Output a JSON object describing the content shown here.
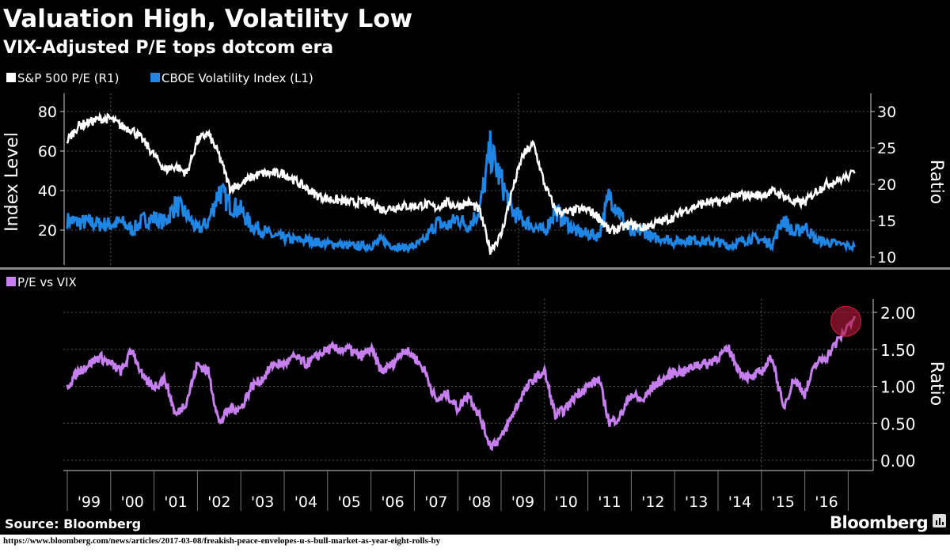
{
  "title": "Valuation High, Volatility Low",
  "subtitle": "VIX-Adjusted P/E tops dotcom era",
  "source": "Source: Bloomberg",
  "brand": "Bloomberg",
  "url": "https://www.bloomberg.com/news/articles/2017-03-08/freakish-peace-envelopes-u-s-bull-market-as-year-eight-rolls-by",
  "colors": {
    "pe": "#ffffff",
    "vix": "#1f86e6",
    "ratio": "#c77ff0",
    "highlight": "#b0183a"
  },
  "chart_data": [
    {
      "type": "line",
      "panel": "top",
      "legend": [
        "S&P 500 P/E (R1)",
        "CBOE Volatility Index  (L1)"
      ],
      "ylabel_left": "Index Level",
      "ylabel_right": "Ratio",
      "ylim_left": [
        5,
        85
      ],
      "yticks_left": [
        "80",
        "60",
        "40",
        "20"
      ],
      "ylim_right": [
        9.5,
        31.5
      ],
      "yticks_right": [
        "30",
        "25",
        "20",
        "15",
        "10"
      ],
      "grid": true,
      "x": [
        1999,
        1999.25,
        1999.5,
        1999.75,
        2000,
        2000.25,
        2000.5,
        2000.75,
        2001,
        2001.25,
        2001.5,
        2001.75,
        2002,
        2002.25,
        2002.5,
        2002.75,
        2003,
        2003.25,
        2003.5,
        2003.75,
        2004,
        2004.25,
        2004.5,
        2004.75,
        2005,
        2005.25,
        2005.5,
        2005.75,
        2006,
        2006.25,
        2006.5,
        2006.75,
        2007,
        2007.25,
        2007.5,
        2007.75,
        2008,
        2008.25,
        2008.5,
        2008.75,
        2009,
        2009.25,
        2009.5,
        2009.75,
        2010,
        2010.25,
        2010.5,
        2010.75,
        2011,
        2011.25,
        2011.5,
        2011.75,
        2012,
        2012.25,
        2012.5,
        2012.75,
        2013,
        2013.25,
        2013.5,
        2013.75,
        2014,
        2014.25,
        2014.5,
        2014.75,
        2015,
        2015.25,
        2015.5,
        2015.75,
        2016,
        2016.25,
        2016.5,
        2016.75,
        2017.15
      ],
      "series": [
        {
          "name": "S&P 500 P/E (R1)",
          "axis": "right",
          "values": [
            26,
            28,
            28.5,
            29,
            29,
            28,
            27.5,
            26,
            24,
            22,
            22.5,
            21.5,
            26,
            27,
            24,
            19.5,
            20,
            21,
            21.5,
            21.5,
            21.5,
            20.5,
            19.5,
            18.5,
            18,
            17.8,
            17.5,
            17.5,
            17.5,
            16.5,
            16.8,
            17,
            17,
            17.2,
            16.8,
            17.5,
            17,
            17.5,
            16.5,
            11,
            13,
            19,
            24,
            25.5,
            20,
            16.5,
            16,
            16.5,
            16.5,
            15.5,
            13.5,
            14,
            14.5,
            14,
            14.5,
            15,
            15.5,
            16.5,
            17,
            17.5,
            17.5,
            18,
            18.5,
            18.5,
            18.5,
            19,
            18.5,
            17.5,
            17.5,
            19,
            20,
            20.5,
            21.5
          ]
        },
        {
          "name": "CBOE Volatility Index  (L1)",
          "axis": "left",
          "values": [
            25,
            24,
            24,
            23,
            23,
            24,
            20,
            25,
            26,
            24,
            33,
            28,
            20,
            24,
            40,
            33,
            30,
            22,
            20,
            17,
            16,
            15,
            15,
            14,
            13,
            13,
            12,
            12,
            12,
            15,
            12,
            11,
            12,
            15,
            24,
            22,
            26,
            22,
            30,
            60,
            45,
            30,
            25,
            22,
            19,
            30,
            24,
            19,
            18,
            17,
            38,
            28,
            18,
            20,
            16,
            16,
            14,
            15,
            15,
            14,
            14,
            12,
            14,
            16,
            15,
            13,
            26,
            18,
            22,
            15,
            14,
            13,
            11.5
          ]
        }
      ]
    },
    {
      "type": "line",
      "panel": "bottom",
      "legend": [
        "P/E vs VIX"
      ],
      "ylabel_right": "Ratio",
      "ylim": [
        -0.1,
        2.15
      ],
      "yticks": [
        "2.00",
        "1.50",
        "1.00",
        "0.50",
        "0.00"
      ],
      "grid": true,
      "xticks": [
        "'99",
        "'00",
        "'01",
        "'02",
        "'03",
        "'04",
        "'05",
        "'06",
        "'07",
        "'08",
        "'09",
        "'10",
        "'11",
        "'12",
        "'13",
        "'14",
        "'15",
        "'16"
      ],
      "series": [
        {
          "name": "P/E vs VIX",
          "values": [
            1.0,
            1.2,
            1.3,
            1.4,
            1.3,
            1.2,
            1.5,
            1.1,
            1.0,
            1.1,
            0.6,
            0.8,
            1.3,
            1.2,
            0.5,
            0.7,
            0.7,
            1.0,
            1.1,
            1.3,
            1.3,
            1.4,
            1.3,
            1.4,
            1.5,
            1.5,
            1.5,
            1.4,
            1.5,
            1.2,
            1.3,
            1.5,
            1.4,
            1.2,
            0.8,
            0.9,
            0.7,
            0.9,
            0.6,
            0.2,
            0.3,
            0.6,
            0.9,
            1.1,
            1.2,
            0.6,
            0.7,
            0.9,
            1.0,
            1.1,
            0.5,
            0.6,
            0.9,
            0.8,
            1.0,
            1.1,
            1.2,
            1.2,
            1.3,
            1.3,
            1.4,
            1.5,
            1.2,
            1.1,
            1.2,
            1.4,
            0.7,
            1.1,
            0.9,
            1.3,
            1.4,
            1.6,
            1.95
          ]
        }
      ],
      "annotation": "highlight circle at latest value"
    }
  ]
}
